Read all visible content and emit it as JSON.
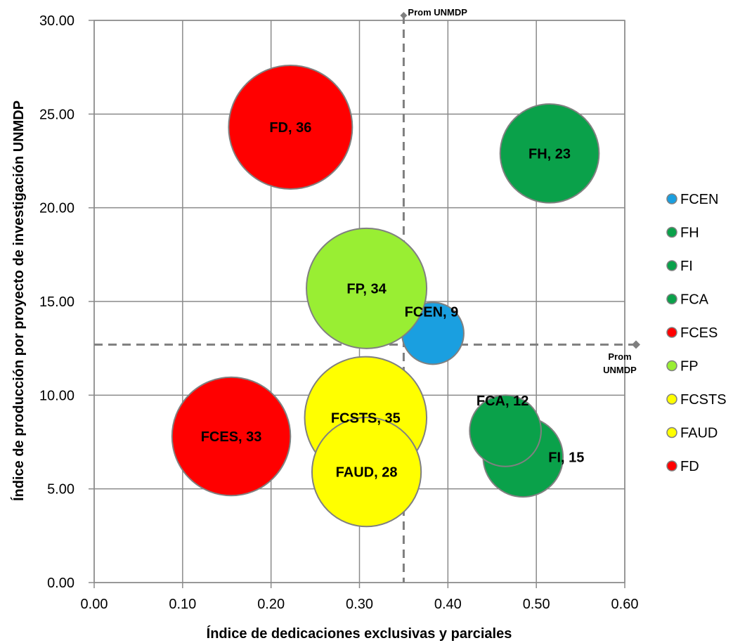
{
  "chart_data": {
    "type": "bubble",
    "xlabel": "Índice de dedicaciones exclusivas y parciales",
    "ylabel": "Índice de producción por proyecto de investigación UNMDP",
    "xlim": [
      0,
      0.6
    ],
    "ylim": [
      0,
      30
    ],
    "x_ticks": [
      "0.00",
      "0.10",
      "0.20",
      "0.30",
      "0.40",
      "0.50",
      "0.60"
    ],
    "y_ticks": [
      "0.00",
      "5.00",
      "10.00",
      "15.00",
      "20.00",
      "25.00",
      "30.00"
    ],
    "grid": true,
    "legend_position": "right",
    "series": [
      {
        "name": "FCEN",
        "label": "FCEN, 9",
        "x": 0.383,
        "y": 13.3,
        "size": 9,
        "color": "#1a9fe0"
      },
      {
        "name": "FH",
        "label": "FH, 23",
        "x": 0.515,
        "y": 22.9,
        "size": 23,
        "color": "#0aa14a"
      },
      {
        "name": "FI",
        "label": "FI, 15",
        "x": 0.485,
        "y": 6.7,
        "size": 15,
        "color": "#0aa14a"
      },
      {
        "name": "FCA",
        "label": "FCA, 12",
        "x": 0.465,
        "y": 8.1,
        "size": 12,
        "color": "#0aa14a"
      },
      {
        "name": "FCES",
        "label": "FCES, 33",
        "x": 0.155,
        "y": 7.8,
        "size": 33,
        "color": "#ff0000"
      },
      {
        "name": "FP",
        "label": "FP, 34",
        "x": 0.308,
        "y": 15.7,
        "size": 34,
        "color": "#99ee33"
      },
      {
        "name": "FCSTS",
        "label": "FCSTS, 35",
        "x": 0.307,
        "y": 8.8,
        "size": 35,
        "color": "#ffff00"
      },
      {
        "name": "FAUD",
        "label": "FAUD, 28",
        "x": 0.308,
        "y": 5.9,
        "size": 28,
        "color": "#ffff00"
      },
      {
        "name": "FD",
        "label": "FD, 36",
        "x": 0.222,
        "y": 24.3,
        "size": 36,
        "color": "#ff0000"
      }
    ],
    "reference_lines": {
      "vertical": {
        "x": 0.35,
        "label": "Prom UNMDP"
      },
      "horizontal": {
        "y": 12.7,
        "label_line1": "Prom",
        "label_line2": "UNMDP"
      }
    }
  }
}
